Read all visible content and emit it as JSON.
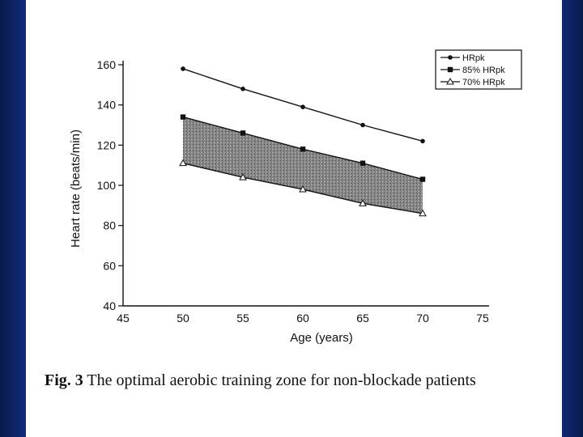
{
  "caption": {
    "label": "Fig. 3",
    "text": "The optimal aerobic training zone for non-blockade patients"
  },
  "chart_data": {
    "type": "line",
    "xlabel": "Age (years)",
    "ylabel": "Heart rate (beats/min)",
    "xlim": [
      45,
      75
    ],
    "ylim": [
      40,
      160
    ],
    "x_ticks": [
      45,
      50,
      55,
      60,
      65,
      70,
      75
    ],
    "y_ticks": [
      40,
      60,
      80,
      100,
      120,
      140,
      160
    ],
    "x": [
      50,
      55,
      60,
      65,
      70
    ],
    "series": [
      {
        "name": "HRpk",
        "values": [
          158,
          148,
          139,
          130,
          122
        ],
        "marker": "diamond"
      },
      {
        "name": "85% HRpk",
        "values": [
          134,
          126,
          118,
          111,
          103
        ],
        "marker": "square"
      },
      {
        "name": "70% HRpk",
        "values": [
          111,
          104,
          98,
          91,
          86
        ],
        "marker": "triangle"
      }
    ],
    "shaded_zone": "between 85% HRpk and 70% HRpk",
    "legend_position": "top-right",
    "grid": false
  }
}
